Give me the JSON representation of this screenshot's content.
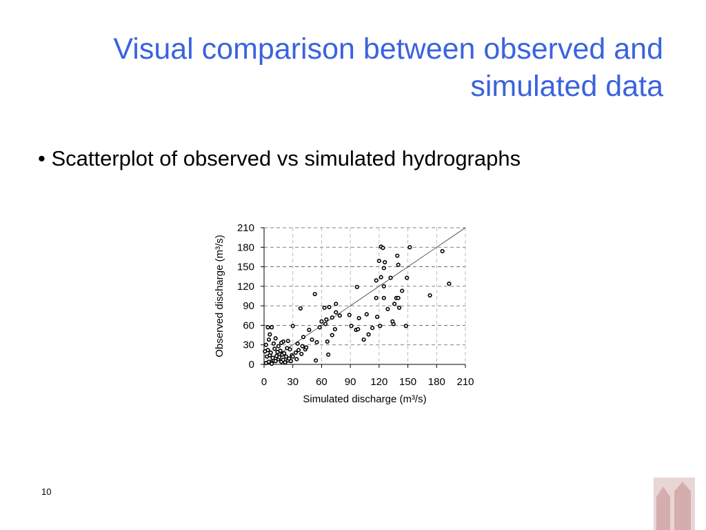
{
  "slide": {
    "title_lines": [
      "Visual comparison between observed and",
      "simulated data"
    ],
    "bullet": "Scatterplot of observed vs simulated hydrographs",
    "page_number": "10"
  },
  "chart_data": {
    "type": "scatter",
    "x_label": "Simulated discharge (m³/s)",
    "y_label": "Observed discharge (m³/s)",
    "xlim": [
      0,
      210
    ],
    "ylim": [
      0,
      210
    ],
    "xticks": [
      0,
      30,
      60,
      90,
      120,
      150,
      180,
      210
    ],
    "yticks": [
      0,
      30,
      60,
      90,
      120,
      150,
      180,
      210
    ],
    "grid": true,
    "identity_line": true,
    "color": "#000000",
    "x": [
      122,
      124,
      152,
      186,
      120,
      126,
      139,
      140,
      125,
      132,
      117,
      122,
      97,
      125,
      144,
      149,
      193,
      138,
      140,
      136,
      141,
      129,
      117,
      125,
      173,
      53,
      75,
      63,
      68,
      38,
      75,
      71,
      79,
      89,
      99,
      107,
      118,
      121,
      135,
      134,
      148,
      113,
      109,
      104,
      96,
      91,
      98,
      60,
      65,
      64,
      58,
      71,
      74,
      66,
      67,
      54,
      30,
      47,
      41,
      50,
      55,
      35,
      43,
      39,
      34,
      4,
      8,
      6,
      2,
      5,
      8,
      10,
      12,
      15,
      18,
      20,
      22,
      25,
      28,
      3,
      6,
      9,
      13,
      16,
      19,
      23,
      26,
      29,
      1,
      4,
      7,
      11,
      14,
      17,
      21,
      24,
      27,
      2,
      10,
      15,
      20,
      5,
      12,
      18,
      25,
      8,
      30,
      33,
      36,
      40,
      44
    ],
    "values": [
      181,
      179,
      180,
      174,
      159,
      157,
      167,
      153,
      148,
      133,
      129,
      134,
      119,
      120,
      113,
      133,
      124,
      102,
      102,
      93,
      87,
      85,
      102,
      102,
      106,
      108,
      93,
      87,
      88,
      86,
      80,
      72,
      75,
      76,
      71,
      77,
      73,
      59,
      62,
      66,
      59,
      56,
      46,
      38,
      53,
      59,
      54,
      66,
      69,
      62,
      57,
      45,
      54,
      35,
      15,
      6,
      59,
      53,
      42,
      38,
      34,
      32,
      23,
      16,
      8,
      57,
      57,
      46,
      2,
      4,
      3,
      6,
      5,
      8,
      4,
      7,
      3,
      6,
      5,
      12,
      14,
      10,
      13,
      11,
      15,
      12,
      9,
      14,
      20,
      22,
      18,
      24,
      19,
      21,
      17,
      25,
      23,
      30,
      32,
      28,
      35,
      38,
      40,
      33,
      36,
      1,
      12,
      18,
      22,
      28,
      26
    ]
  }
}
